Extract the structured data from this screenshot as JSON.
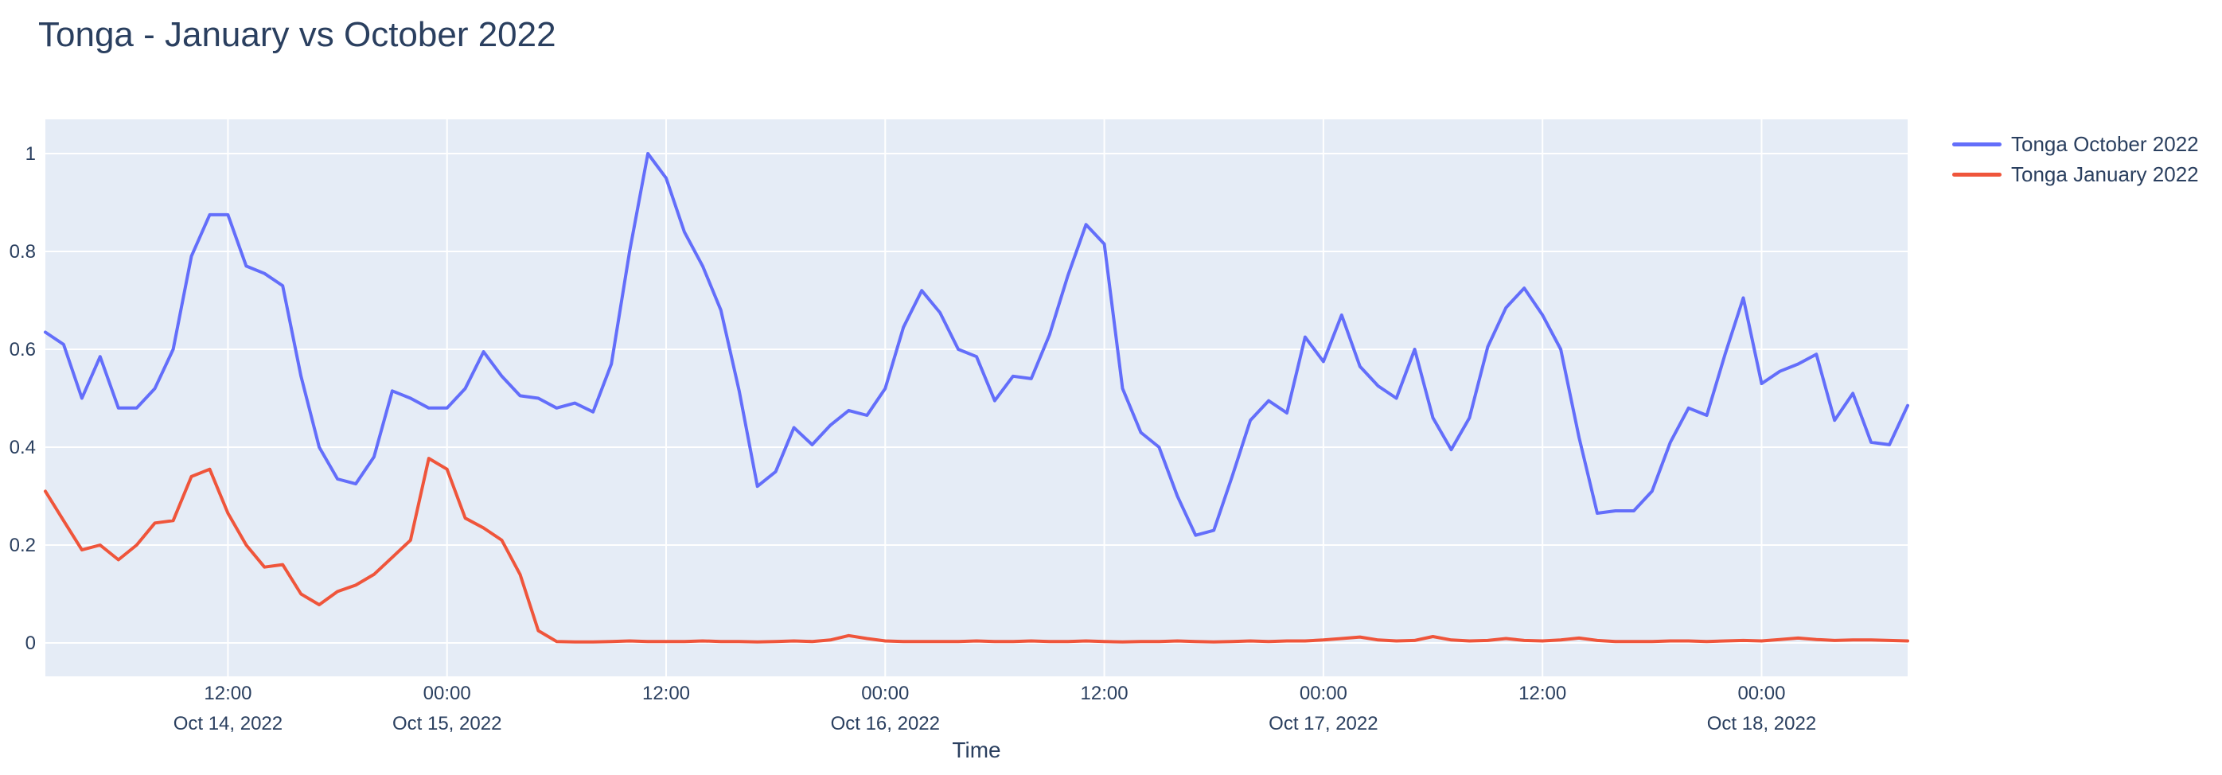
{
  "title": "Tonga - January vs October 2022",
  "legend": {
    "items": [
      {
        "label": "Tonga October 2022",
        "color": "#636efa"
      },
      {
        "label": "Tonga January 2022",
        "color": "#ef553b"
      }
    ]
  },
  "colors": {
    "text": "#2a3f5f",
    "plot_background": "#e5ecf6",
    "gridline": "#ffffff",
    "paper": "#ffffff",
    "series_october": "#636efa",
    "series_january": "#ef553b"
  },
  "chart_data": {
    "type": "line",
    "title": "Tonga - January vs October 2022",
    "xlabel": "Time",
    "ylabel": "",
    "grid": true,
    "legend_position": "right",
    "plot_bg": "#e5ecf6",
    "x_start": "2022-10-14 02:00",
    "x_end": "2022-10-18 08:00",
    "x_step_hours": 1,
    "n_points": 103,
    "ylim": [
      -0.065,
      1.07
    ],
    "yticks": [
      {
        "value": 0.0,
        "label": "0"
      },
      {
        "value": 0.2,
        "label": "0.2"
      },
      {
        "value": 0.4,
        "label": "0.4"
      },
      {
        "value": 0.6,
        "label": "0.6"
      },
      {
        "value": 0.8,
        "label": "0.8"
      },
      {
        "value": 1.0,
        "label": "1"
      }
    ],
    "xticks": [
      {
        "index": 10,
        "time": "12:00",
        "date": "Oct 14, 2022"
      },
      {
        "index": 22,
        "time": "00:00",
        "date": "Oct 15, 2022"
      },
      {
        "index": 34,
        "time": "12:00",
        "date": ""
      },
      {
        "index": 46,
        "time": "00:00",
        "date": "Oct 16, 2022"
      },
      {
        "index": 58,
        "time": "12:00",
        "date": ""
      },
      {
        "index": 70,
        "time": "00:00",
        "date": "Oct 17, 2022"
      },
      {
        "index": 82,
        "time": "12:00",
        "date": ""
      },
      {
        "index": 94,
        "time": "00:00",
        "date": "Oct 18, 2022"
      }
    ],
    "series": [
      {
        "name": "Tonga October 2022",
        "color": "#636efa",
        "values": [
          0.635,
          0.61,
          0.5,
          0.585,
          0.48,
          0.48,
          0.52,
          0.6,
          0.79,
          0.875,
          0.875,
          0.77,
          0.755,
          0.73,
          0.545,
          0.4,
          0.335,
          0.325,
          0.38,
          0.515,
          0.5,
          0.48,
          0.48,
          0.52,
          0.595,
          0.545,
          0.505,
          0.5,
          0.48,
          0.49,
          0.472,
          0.57,
          0.8,
          1.0,
          0.95,
          0.84,
          0.77,
          0.68,
          0.515,
          0.32,
          0.35,
          0.44,
          0.405,
          0.445,
          0.475,
          0.465,
          0.52,
          0.645,
          0.72,
          0.675,
          0.6,
          0.585,
          0.495,
          0.545,
          0.54,
          0.63,
          0.75,
          0.855,
          0.815,
          0.52,
          0.43,
          0.4,
          0.3,
          0.22,
          0.23,
          0.34,
          0.455,
          0.495,
          0.47,
          0.625,
          0.575,
          0.67,
          0.565,
          0.525,
          0.5,
          0.6,
          0.46,
          0.395,
          0.46,
          0.605,
          0.685,
          0.725,
          0.67,
          0.6,
          0.42,
          0.265,
          0.27,
          0.27,
          0.31,
          0.41,
          0.48,
          0.465,
          0.59,
          0.705,
          0.53,
          0.555,
          0.57,
          0.59,
          0.455,
          0.51,
          0.41,
          0.405,
          0.485
        ]
      },
      {
        "name": "Tonga January 2022",
        "color": "#ef553b",
        "values": [
          0.31,
          0.25,
          0.19,
          0.2,
          0.17,
          0.2,
          0.245,
          0.25,
          0.34,
          0.355,
          0.265,
          0.2,
          0.155,
          0.16,
          0.1,
          0.078,
          0.105,
          0.118,
          0.14,
          0.175,
          0.21,
          0.377,
          0.355,
          0.255,
          0.235,
          0.21,
          0.14,
          0.025,
          0.003,
          0.002,
          0.002,
          0.003,
          0.004,
          0.003,
          0.003,
          0.003,
          0.004,
          0.003,
          0.003,
          0.002,
          0.003,
          0.004,
          0.003,
          0.006,
          0.015,
          0.009,
          0.004,
          0.003,
          0.003,
          0.003,
          0.003,
          0.004,
          0.003,
          0.003,
          0.004,
          0.003,
          0.003,
          0.004,
          0.003,
          0.002,
          0.003,
          0.003,
          0.004,
          0.003,
          0.002,
          0.003,
          0.004,
          0.003,
          0.004,
          0.004,
          0.006,
          0.009,
          0.012,
          0.006,
          0.004,
          0.005,
          0.013,
          0.006,
          0.004,
          0.005,
          0.009,
          0.005,
          0.004,
          0.006,
          0.01,
          0.005,
          0.003,
          0.003,
          0.003,
          0.004,
          0.004,
          0.003,
          0.004,
          0.005,
          0.004,
          0.007,
          0.01,
          0.007,
          0.005,
          0.006,
          0.006,
          0.005,
          0.004
        ]
      }
    ]
  }
}
